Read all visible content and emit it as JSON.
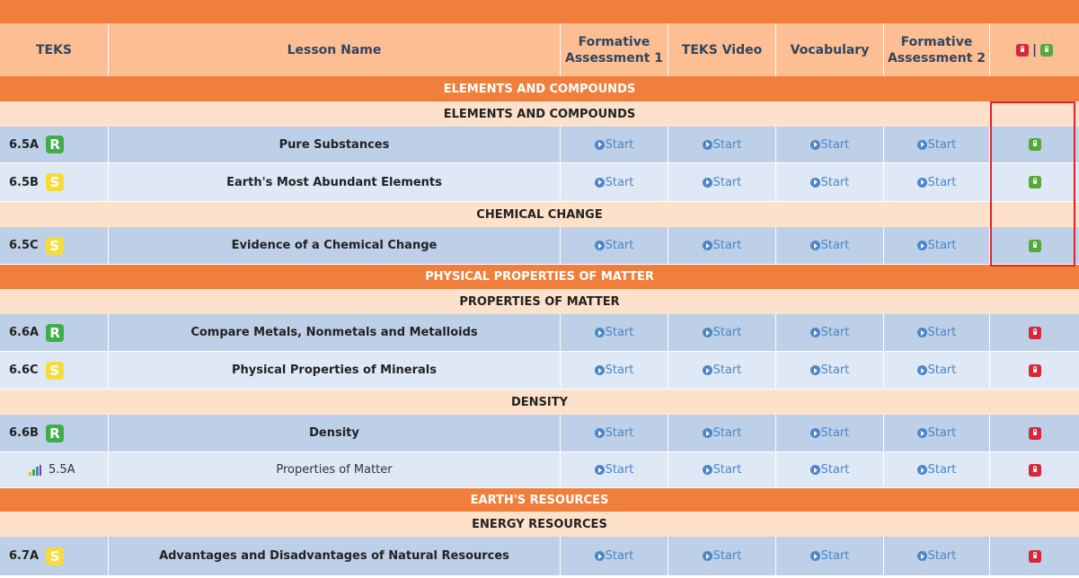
{
  "header": {
    "teks": "TEKS",
    "lesson_name": "Lesson Name",
    "formative_1": "Formative Assessment 1",
    "teks_video": "TEKS Video",
    "vocabulary": "Vocabulary",
    "formative_2": "Formative Assessment 2",
    "lock_separator": "|"
  },
  "start_label": "Start",
  "colors": {
    "unit": "#f07f3c",
    "section": "#fde1cb",
    "header": "#fdbe94",
    "row_dark": "#bdd0e8",
    "row_light": "#dfe8f5",
    "locked": "#d6283a",
    "unlocked": "#55a83a",
    "highlight": "#e0242b"
  },
  "units": [
    {
      "title": "ELEMENTS AND COMPOUNDS"
    },
    {
      "title": "PHYSICAL PROPERTIES OF MATTER"
    },
    {
      "title": "EARTH'S RESOURCES"
    }
  ],
  "sections": [
    {
      "title": "ELEMENTS AND COMPOUNDS"
    },
    {
      "title": "CHEMICAL CHANGE"
    },
    {
      "title": "PROPERTIES OF MATTER"
    },
    {
      "title": "DENSITY"
    },
    {
      "title": "ENERGY RESOURCES"
    }
  ],
  "lessons": [
    {
      "teks": "6.5A",
      "badge": "R",
      "name": "Pure Substances",
      "lock": "unlocked"
    },
    {
      "teks": "6.5B",
      "badge": "S",
      "name": "Earth's Most Abundant Elements",
      "lock": "unlocked"
    },
    {
      "teks": "6.5C",
      "badge": "S",
      "name": "Evidence of a Chemical Change",
      "lock": "unlocked"
    },
    {
      "teks": "6.6A",
      "badge": "R",
      "name": "Compare Metals, Nonmetals and Metalloids",
      "lock": "locked"
    },
    {
      "teks": "6.6C",
      "badge": "S",
      "name": "Physical Properties of Minerals",
      "lock": "locked"
    },
    {
      "teks": "6.6B",
      "badge": "R",
      "name": "Density",
      "lock": "locked"
    },
    {
      "teks": "5.5A",
      "badge": "",
      "name": "Properties of Matter",
      "lock": "locked"
    },
    {
      "teks": "6.7A",
      "badge": "S",
      "name": "Advantages and Disadvantages of Natural Resources",
      "lock": "locked"
    }
  ]
}
